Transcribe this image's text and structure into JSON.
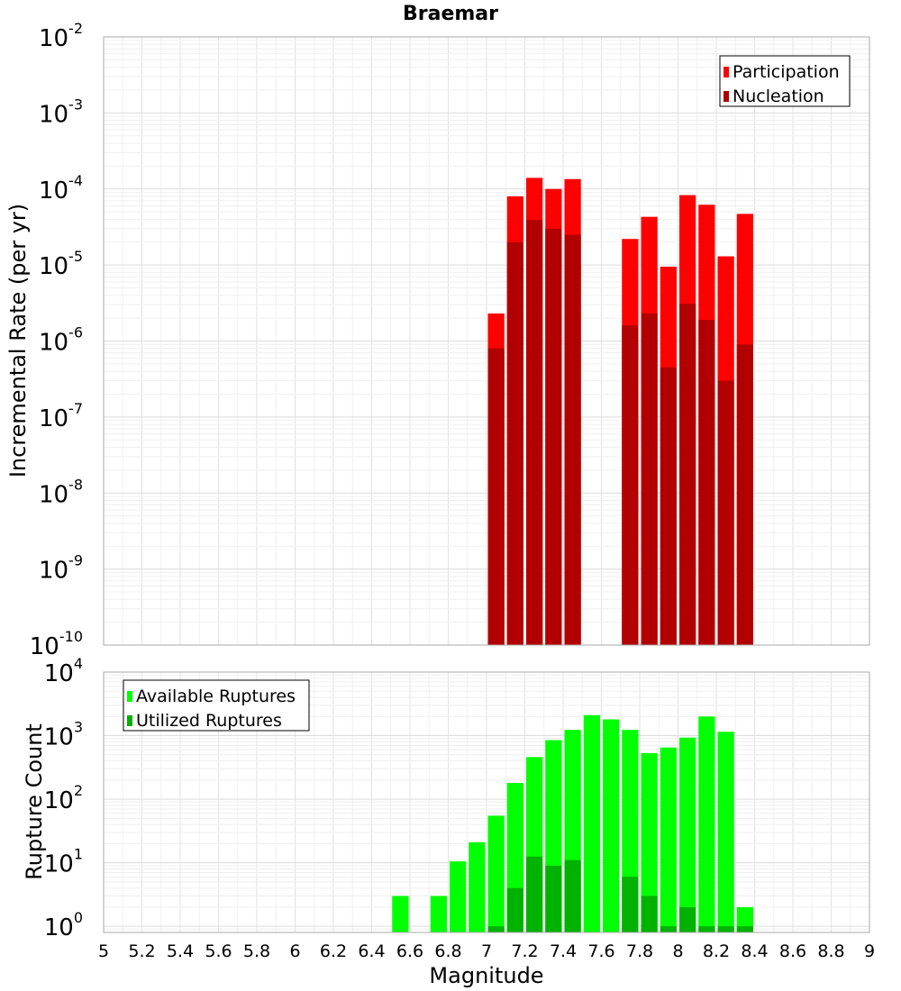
{
  "chart_data": [
    {
      "type": "bar",
      "title": "Braemar",
      "ylabel": "Incremental Rate (per yr)",
      "xlabel": "",
      "yscale": "log",
      "ylim": [
        1e-10,
        0.01
      ],
      "xlim": [
        5,
        9
      ],
      "grid": true,
      "legend_position": "top-right",
      "bin_width": 0.1,
      "y_tick_exponents": [
        -10,
        -9,
        -8,
        -7,
        -6,
        -5,
        -4,
        -3,
        -2
      ],
      "series": [
        {
          "name": "Participation",
          "color": "#ff0000",
          "x": [
            7.0,
            7.1,
            7.2,
            7.3,
            7.4,
            7.7,
            7.8,
            7.9,
            8.0,
            8.1,
            8.2,
            8.3
          ],
          "values": [
            2.3e-06,
            8e-05,
            0.00014,
            0.0001,
            0.000135,
            2.2e-05,
            4.3e-05,
            9.5e-06,
            8.3e-05,
            6.2e-05,
            1.3e-05,
            4.7e-05
          ]
        },
        {
          "name": "Nucleation",
          "color": "#b20000",
          "x": [
            7.0,
            7.1,
            7.2,
            7.3,
            7.4,
            7.7,
            7.8,
            7.9,
            8.0,
            8.1,
            8.2,
            8.3
          ],
          "values": [
            8e-07,
            2e-05,
            3.9e-05,
            3e-05,
            2.5e-05,
            1.6e-06,
            2.3e-06,
            4.5e-07,
            3.1e-06,
            1.9e-06,
            3e-07,
            9e-07
          ]
        }
      ]
    },
    {
      "type": "bar",
      "title": "",
      "ylabel": "Rupture Count",
      "xlabel": "Magnitude",
      "yscale": "log",
      "ylim": [
        0.8,
        10000.0
      ],
      "xlim": [
        5,
        9
      ],
      "grid": true,
      "legend_position": "top-left",
      "bin_width": 0.1,
      "y_tick_exponents": [
        0,
        1,
        2,
        3,
        4
      ],
      "x_ticks": [
        "5",
        "5.2",
        "5.4",
        "5.6",
        "5.8",
        "6",
        "6.2",
        "6.4",
        "6.6",
        "6.8",
        "7",
        "7.2",
        "7.4",
        "7.6",
        "7.8",
        "8",
        "8.2",
        "8.4",
        "8.6",
        "8.8",
        "9"
      ],
      "series": [
        {
          "name": "Available Ruptures",
          "color": "#00ff00",
          "x": [
            6.5,
            6.7,
            6.8,
            6.9,
            7.0,
            7.1,
            7.2,
            7.3,
            7.4,
            7.5,
            7.6,
            7.7,
            7.8,
            7.9,
            8.0,
            8.1,
            8.2,
            8.3
          ],
          "values": [
            3,
            3,
            10.5,
            21,
            55,
            180,
            460,
            850,
            1230,
            2100,
            1800,
            1230,
            530,
            650,
            930,
            2000,
            1150,
            2
          ]
        },
        {
          "name": "Utilized Ruptures",
          "color": "#00b200",
          "x": [
            7.0,
            7.1,
            7.2,
            7.3,
            7.4,
            7.7,
            7.8,
            7.9,
            8.0,
            8.1,
            8.2,
            8.3
          ],
          "values": [
            1,
            4,
            12.5,
            9,
            11,
            6,
            3,
            1,
            2,
            1,
            1,
            1
          ]
        }
      ]
    }
  ]
}
